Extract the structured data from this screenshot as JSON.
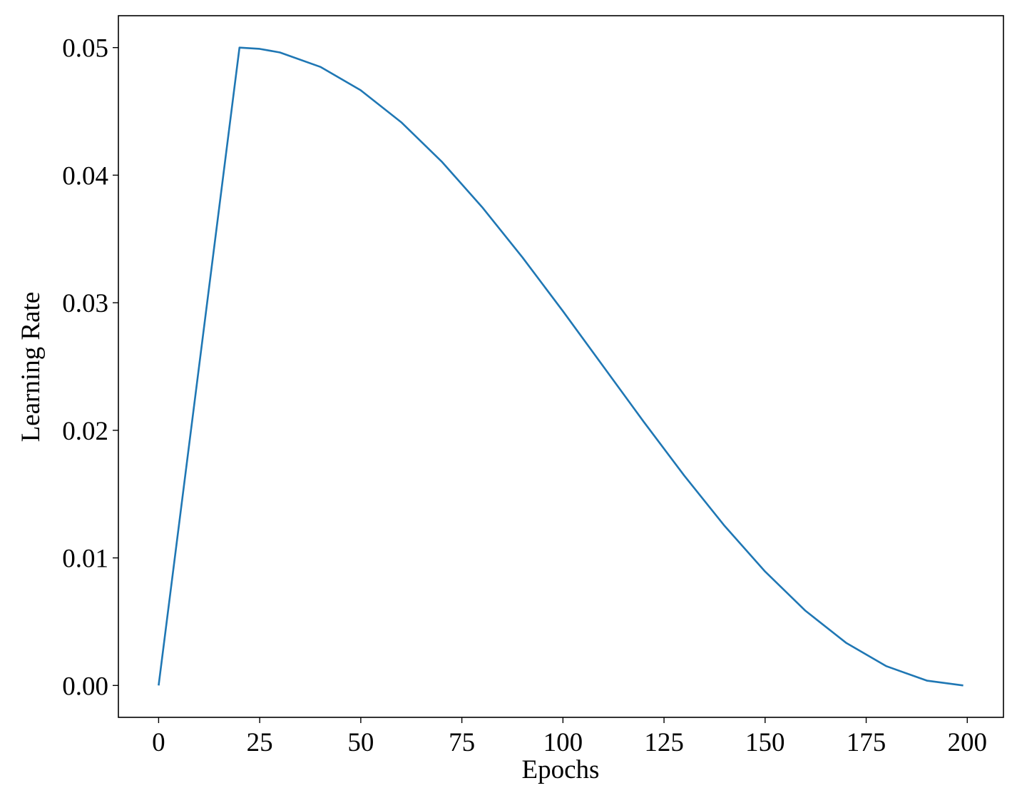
{
  "chart_data": {
    "type": "line",
    "x_label": "Epochs",
    "y_label": "Learning Rate",
    "x": [
      0,
      5,
      10,
      15,
      20,
      25,
      30,
      40,
      50,
      60,
      70,
      80,
      90,
      100,
      110,
      120,
      130,
      140,
      150,
      160,
      170,
      180,
      190,
      199
    ],
    "series": [
      {
        "color": "#1f77b4",
        "values": [
          0,
          0.0125,
          0.025,
          0.0375,
          0.05,
          0.0499,
          0.04962,
          0.04849,
          0.04665,
          0.04415,
          0.04107,
          0.0375,
          0.03355,
          0.02934,
          0.025,
          0.02066,
          0.01645,
          0.0125,
          0.00893,
          0.00585,
          0.00335,
          0.00151,
          0.00038,
          0
        ]
      }
    ],
    "xlim": [
      -9.95,
      208.95
    ],
    "ylim": [
      -0.0025,
      0.0525
    ],
    "xticks": [
      0,
      25,
      50,
      75,
      100,
      125,
      150,
      175,
      200
    ],
    "yticks": [
      {
        "value": 0,
        "label": "0.00"
      },
      {
        "value": 0.01,
        "label": "0.01"
      },
      {
        "value": 0.02,
        "label": "0.02"
      },
      {
        "value": 0.03,
        "label": "0.03"
      },
      {
        "value": 0.04,
        "label": "0.04"
      },
      {
        "value": 0.05,
        "label": "0.05"
      }
    ],
    "grid": false
  }
}
